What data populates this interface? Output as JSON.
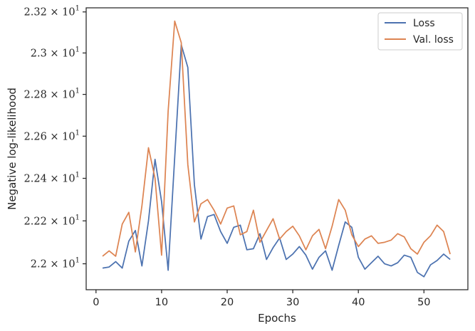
{
  "chart_data": {
    "type": "line",
    "xlabel": "Epochs",
    "ylabel": "Negative log-likelihood",
    "xlim": [
      -1.5,
      56.7
    ],
    "ylim": [
      21.88,
      23.22
    ],
    "yscale": "log",
    "x_ticks": [
      0,
      10,
      20,
      30,
      40,
      50
    ],
    "y_ticks": [
      {
        "value": 22.0,
        "mantissa": "2.2",
        "exponent": "1"
      },
      {
        "value": 22.2,
        "mantissa": "2.22",
        "exponent": "1"
      },
      {
        "value": 22.4,
        "mantissa": "2.24",
        "exponent": "1"
      },
      {
        "value": 22.6,
        "mantissa": "2.26",
        "exponent": "1"
      },
      {
        "value": 22.8,
        "mantissa": "2.28",
        "exponent": "1"
      },
      {
        "value": 23.0,
        "mantissa": "2.3",
        "exponent": "1"
      },
      {
        "value": 23.2,
        "mantissa": "2.32",
        "exponent": "1"
      }
    ],
    "times_symbol": "×",
    "base_label": "10",
    "grid": false,
    "legend_position": "upper-right",
    "x": [
      1,
      2,
      3,
      4,
      5,
      6,
      7,
      8,
      9,
      10,
      11,
      12,
      13,
      14,
      15,
      16,
      17,
      18,
      19,
      20,
      21,
      22,
      23,
      24,
      25,
      26,
      27,
      28,
      29,
      30,
      31,
      32,
      33,
      34,
      35,
      36,
      37,
      38,
      39,
      40,
      41,
      42,
      43,
      44,
      45,
      46,
      47,
      48,
      49,
      50,
      51,
      52,
      53,
      54
    ],
    "series": [
      {
        "name": "Loss",
        "color": "#4c72b0",
        "values": [
          21.98,
          21.985,
          22.01,
          21.98,
          22.105,
          22.155,
          21.99,
          22.2,
          22.49,
          22.29,
          21.97,
          22.5,
          23.04,
          22.93,
          22.37,
          22.115,
          22.22,
          22.23,
          22.15,
          22.095,
          22.17,
          22.18,
          22.065,
          22.07,
          22.14,
          22.02,
          22.075,
          22.12,
          22.02,
          22.045,
          22.08,
          22.04,
          21.975,
          22.03,
          22.06,
          21.97,
          22.085,
          22.195,
          22.17,
          22.03,
          21.975,
          22.005,
          22.035,
          22.0,
          21.99,
          22.005,
          22.04,
          22.03,
          21.96,
          21.94,
          21.995,
          22.015,
          22.045,
          22.02
        ]
      },
      {
        "name": "Val. loss",
        "color": "#dd8452",
        "values": [
          22.035,
          22.06,
          22.035,
          22.185,
          22.24,
          22.055,
          22.27,
          22.545,
          22.4,
          22.04,
          22.72,
          23.155,
          23.05,
          22.465,
          22.195,
          22.28,
          22.3,
          22.25,
          22.185,
          22.26,
          22.27,
          22.135,
          22.15,
          22.25,
          22.1,
          22.155,
          22.21,
          22.115,
          22.15,
          22.175,
          22.13,
          22.065,
          22.13,
          22.16,
          22.07,
          22.175,
          22.3,
          22.25,
          22.135,
          22.08,
          22.115,
          22.13,
          22.095,
          22.1,
          22.11,
          22.14,
          22.125,
          22.07,
          22.045,
          22.1,
          22.13,
          22.18,
          22.15,
          22.045
        ]
      }
    ]
  }
}
